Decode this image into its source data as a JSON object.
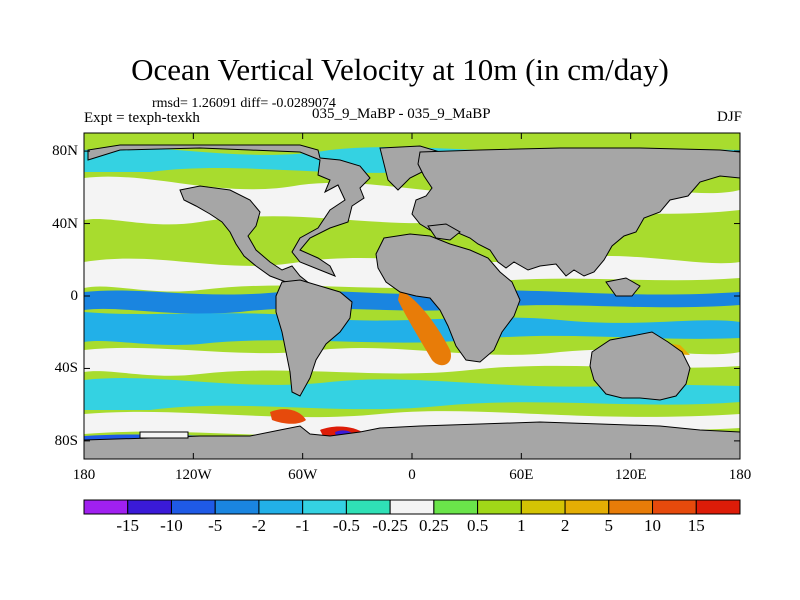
{
  "title": "Ocean Vertical Velocity at 10m (in cm/day)",
  "stats": "rmsd= 1.26091  diff= -0.0289074",
  "experiment": "Expt = texph-texkh",
  "case": "035_9_MaBP - 035_9_MaBP",
  "season": "DJF",
  "lat_ticks": [
    {
      "label": "80N",
      "value": 80
    },
    {
      "label": "40N",
      "value": 40
    },
    {
      "label": "0",
      "value": 0
    },
    {
      "label": "40S",
      "value": -40
    },
    {
      "label": "80S",
      "value": -80
    }
  ],
  "lon_ticks": [
    {
      "label": "180",
      "value": -180
    },
    {
      "label": "120W",
      "value": -120
    },
    {
      "label": "60W",
      "value": -60
    },
    {
      "label": "0",
      "value": 0
    },
    {
      "label": "60E",
      "value": 60
    },
    {
      "label": "120E",
      "value": 120
    },
    {
      "label": "180",
      "value": 180
    }
  ],
  "colorbar": {
    "levels": [
      "-15",
      "-10",
      "-5",
      "-2",
      "-1",
      "-0.5",
      "-0.25",
      "0.25",
      "0.5",
      "1",
      "2",
      "5",
      "10",
      "15"
    ],
    "colors": [
      "#a020f0",
      "#3a1ad8",
      "#1f5ae6",
      "#1a85e0",
      "#22b0e8",
      "#34d2e2",
      "#2fe0b6",
      "#f4f4f4",
      "#6ae44a",
      "#a0d818",
      "#d4c404",
      "#e4ae04",
      "#e87c08",
      "#e64a0c",
      "#dd1c08"
    ]
  },
  "colors": {
    "land": "#a6a6a6",
    "ocean_base": "#a8dc2e"
  }
}
